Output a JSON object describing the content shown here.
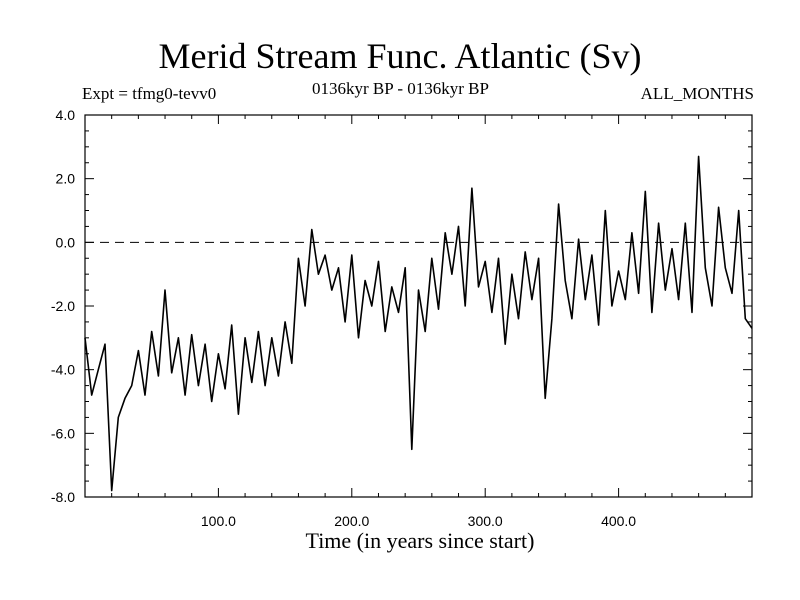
{
  "chart_data": {
    "type": "line",
    "title": "Merid Stream Func. Atlantic (Sv)",
    "subtitle_left": "Expt = tfmg0-tevv0",
    "subtitle_center": "0136kyr BP - 0136kyr BP",
    "subtitle_right": "ALL_MONTHS",
    "xlabel": "Time (in years since start)",
    "ylabel": "",
    "xlim": [
      0,
      500
    ],
    "ylim": [
      -8,
      4
    ],
    "xticks": [
      100,
      200,
      300,
      400
    ],
    "xtick_labels": [
      "100.0",
      "200.0",
      "300.0",
      "400.0"
    ],
    "yticks": [
      -8,
      -6,
      -4,
      -2,
      0,
      2,
      4
    ],
    "ytick_labels": [
      "-8.0",
      "-6.0",
      "-4.0",
      "-2.0",
      "0.0",
      "2.0",
      "4.0"
    ],
    "reference_line": {
      "y": 0,
      "style": "dashed"
    },
    "grid": false,
    "line_color": "#000000",
    "series": [
      {
        "x": [
          0,
          5,
          10,
          15,
          20,
          25,
          30,
          35,
          40,
          45,
          50,
          55,
          60,
          65,
          70,
          75,
          80,
          85,
          90,
          95,
          100,
          105,
          110,
          115,
          120,
          125,
          130,
          135,
          140,
          145,
          150,
          155,
          160,
          165,
          170,
          175,
          180,
          185,
          190,
          195,
          200,
          205,
          210,
          215,
          220,
          225,
          230,
          235,
          240,
          245,
          250,
          255,
          260,
          265,
          270,
          275,
          280,
          285,
          290,
          295,
          300,
          305,
          310,
          315,
          320,
          325,
          330,
          335,
          340,
          345,
          350,
          355,
          360,
          365,
          370,
          375,
          380,
          385,
          390,
          395,
          400,
          405,
          410,
          415,
          420,
          425,
          430,
          435,
          440,
          445,
          450,
          455,
          460,
          465,
          470,
          475,
          480,
          485,
          490,
          495,
          500
        ],
        "values": [
          -3.0,
          -4.8,
          -4.0,
          -3.2,
          -7.8,
          -5.5,
          -4.9,
          -4.5,
          -3.4,
          -4.8,
          -2.8,
          -4.2,
          -1.5,
          -4.1,
          -3.0,
          -4.8,
          -2.9,
          -4.5,
          -3.2,
          -5.0,
          -3.5,
          -4.6,
          -2.6,
          -5.4,
          -3.0,
          -4.4,
          -2.8,
          -4.5,
          -3.0,
          -4.2,
          -2.5,
          -3.8,
          -0.5,
          -2.0,
          0.4,
          -1.0,
          -0.4,
          -1.5,
          -0.8,
          -2.5,
          -0.4,
          -3.0,
          -1.2,
          -2.0,
          -0.6,
          -2.8,
          -1.4,
          -2.2,
          -0.8,
          -6.5,
          -1.5,
          -2.8,
          -0.5,
          -2.1,
          0.3,
          -1.0,
          0.5,
          -2.0,
          1.7,
          -1.4,
          -0.6,
          -2.2,
          -0.5,
          -3.2,
          -1.0,
          -2.4,
          -0.3,
          -1.8,
          -0.5,
          -4.9,
          -2.4,
          1.2,
          -1.2,
          -2.4,
          0.1,
          -1.8,
          -0.4,
          -2.6,
          1.0,
          -2.0,
          -0.9,
          -1.8,
          0.3,
          -1.6,
          1.6,
          -2.2,
          0.6,
          -1.5,
          -0.2,
          -1.8,
          0.6,
          -2.2,
          2.7,
          -0.8,
          -2.0,
          1.1,
          -0.8,
          -1.6,
          1.0,
          -2.4,
          -2.7
        ]
      }
    ]
  }
}
